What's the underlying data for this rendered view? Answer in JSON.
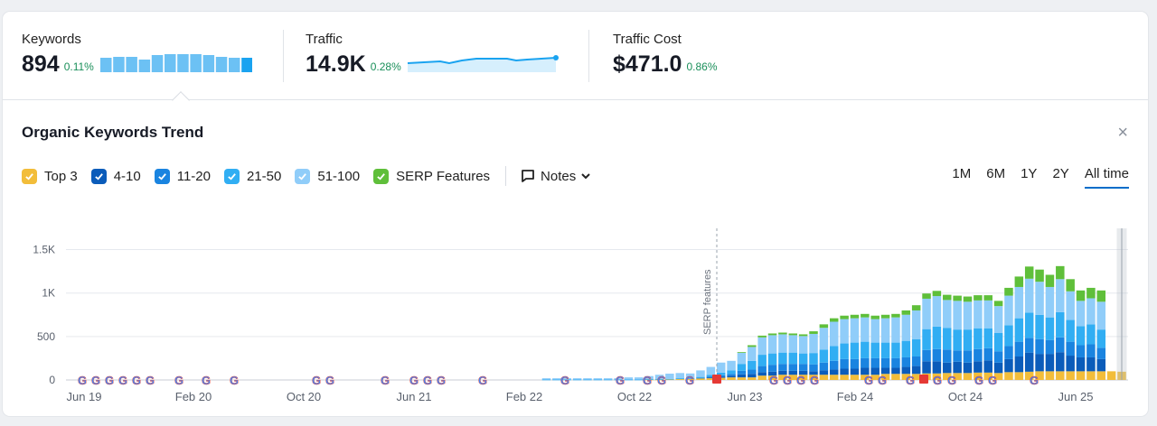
{
  "metrics": {
    "keywords": {
      "label": "Keywords",
      "value": "894",
      "delta": "0.11%"
    },
    "traffic": {
      "label": "Traffic",
      "value": "14.9K",
      "delta": "0.28%"
    },
    "cost": {
      "label": "Traffic Cost",
      "value": "$471.0",
      "delta": "0.86%"
    }
  },
  "trend": {
    "title": "Organic Keywords Trend",
    "close_icon": "×",
    "legend": [
      {
        "name": "top3",
        "label": "Top 3",
        "color": "#f2bd3a"
      },
      {
        "name": "4-10",
        "label": "4-10",
        "color": "#0b5cba"
      },
      {
        "name": "11-20",
        "label": "11-20",
        "color": "#1a84e0"
      },
      {
        "name": "21-50",
        "label": "21-50",
        "color": "#31aef3"
      },
      {
        "name": "51-100",
        "label": "51-100",
        "color": "#90cdf9"
      },
      {
        "name": "serp",
        "label": "SERP Features",
        "color": "#5fbf3a"
      }
    ],
    "notes_label": "Notes",
    "periods": [
      "1M",
      "6M",
      "1Y",
      "2Y",
      "All time"
    ],
    "active_period": "All time"
  },
  "chart_data": {
    "type": "bar",
    "stacked": true,
    "y_ticks": [
      "1.5K",
      "1K",
      "500",
      "0"
    ],
    "ylim": [
      0,
      1700
    ],
    "x_ticks": [
      "Jun 19",
      "Feb 20",
      "Oct 20",
      "Jun 21",
      "Feb 22",
      "Oct 22",
      "Jun 23",
      "Feb 24",
      "Oct 24",
      "Jun 25"
    ],
    "annotation": "SERP features",
    "series": [
      {
        "name": "Top 3",
        "values": [
          0,
          0,
          0,
          0,
          0,
          0,
          0,
          0,
          0,
          0,
          0,
          0,
          0,
          0,
          0,
          0,
          0,
          0,
          0,
          0,
          0,
          0,
          0,
          0,
          0,
          0,
          0,
          0,
          0,
          0,
          0,
          0,
          0,
          0,
          0,
          0,
          0,
          0,
          0,
          0,
          0,
          0,
          0,
          0,
          0,
          0,
          0,
          0,
          0,
          0,
          0,
          0,
          0,
          0,
          0,
          5,
          5,
          8,
          10,
          10,
          20,
          20,
          25,
          30,
          30,
          30,
          50,
          50,
          60,
          60,
          60,
          60,
          60,
          60,
          60,
          60,
          60,
          60,
          70,
          70,
          70,
          70,
          75,
          75,
          80,
          80,
          80,
          85,
          85,
          80,
          90,
          90,
          95,
          100,
          100,
          100,
          100,
          100,
          100,
          100,
          100,
          95
        ]
      },
      {
        "name": "4-10",
        "values": [
          0,
          0,
          0,
          0,
          0,
          0,
          0,
          0,
          0,
          0,
          0,
          0,
          0,
          0,
          0,
          0,
          0,
          0,
          0,
          0,
          0,
          0,
          0,
          0,
          0,
          0,
          0,
          0,
          0,
          0,
          0,
          0,
          0,
          0,
          0,
          0,
          0,
          0,
          0,
          0,
          0,
          0,
          0,
          0,
          0,
          0,
          0,
          0,
          0,
          0,
          0,
          0,
          0,
          0,
          0,
          0,
          0,
          0,
          0,
          0,
          0,
          10,
          15,
          20,
          35,
          40,
          40,
          45,
          45,
          45,
          45,
          40,
          50,
          60,
          70,
          70,
          80,
          80,
          70,
          70,
          80,
          90,
          140,
          140,
          120,
          130,
          120,
          130,
          140,
          120,
          150,
          180,
          220,
          200,
          200,
          220,
          180,
          160,
          160,
          140
        ]
      },
      {
        "name": "11-20",
        "values": [
          0,
          0,
          0,
          0,
          0,
          0,
          0,
          0,
          0,
          0,
          0,
          0,
          0,
          0,
          0,
          0,
          0,
          0,
          0,
          0,
          0,
          0,
          0,
          0,
          0,
          0,
          0,
          0,
          0,
          0,
          0,
          0,
          0,
          0,
          0,
          0,
          0,
          0,
          0,
          0,
          0,
          0,
          0,
          0,
          0,
          0,
          0,
          0,
          0,
          0,
          0,
          0,
          0,
          0,
          0,
          0,
          0,
          0,
          0,
          0,
          5,
          10,
          15,
          20,
          40,
          50,
          70,
          80,
          80,
          80,
          80,
          80,
          90,
          100,
          110,
          110,
          110,
          110,
          110,
          110,
          110,
          110,
          130,
          140,
          150,
          130,
          140,
          140,
          140,
          130,
          150,
          170,
          170,
          170,
          160,
          170,
          160,
          140,
          150,
          130
        ]
      },
      {
        "name": "21-50",
        "values": [
          0,
          0,
          0,
          0,
          0,
          0,
          0,
          0,
          0,
          0,
          0,
          0,
          0,
          0,
          0,
          0,
          0,
          0,
          0,
          0,
          0,
          0,
          0,
          0,
          0,
          0,
          0,
          0,
          0,
          0,
          0,
          0,
          0,
          0,
          0,
          0,
          0,
          0,
          0,
          0,
          0,
          0,
          0,
          0,
          0,
          5,
          5,
          5,
          5,
          5,
          5,
          5,
          5,
          5,
          5,
          5,
          5,
          5,
          10,
          10,
          10,
          20,
          30,
          40,
          80,
          100,
          130,
          130,
          130,
          130,
          120,
          130,
          150,
          170,
          180,
          190,
          190,
          180,
          180,
          180,
          190,
          200,
          240,
          260,
          250,
          240,
          240,
          240,
          230,
          210,
          240,
          270,
          290,
          280,
          260,
          290,
          250,
          220,
          230,
          210
        ]
      },
      {
        "name": "51-100",
        "values": [
          0,
          0,
          0,
          0,
          0,
          0,
          0,
          0,
          0,
          0,
          0,
          0,
          0,
          0,
          0,
          0,
          0,
          0,
          0,
          0,
          0,
          0,
          0,
          0,
          0,
          0,
          0,
          0,
          0,
          0,
          0,
          0,
          0,
          0,
          0,
          0,
          0,
          0,
          0,
          0,
          0,
          0,
          0,
          0,
          0,
          15,
          15,
          15,
          15,
          15,
          15,
          15,
          15,
          25,
          25,
          35,
          50,
          60,
          60,
          55,
          75,
          90,
          115,
          110,
          130,
          160,
          200,
          210,
          210,
          200,
          200,
          220,
          250,
          280,
          280,
          280,
          280,
          270,
          280,
          290,
          300,
          330,
          350,
          350,
          320,
          330,
          320,
          320,
          320,
          310,
          340,
          360,
          390,
          380,
          350,
          380,
          330,
          290,
          300,
          320
        ]
      },
      {
        "name": "SERP Features",
        "values": [
          0,
          0,
          0,
          0,
          0,
          0,
          0,
          0,
          0,
          0,
          0,
          0,
          0,
          0,
          0,
          0,
          0,
          0,
          0,
          0,
          0,
          0,
          0,
          0,
          0,
          0,
          0,
          0,
          0,
          0,
          0,
          0,
          0,
          0,
          0,
          0,
          0,
          0,
          0,
          0,
          0,
          0,
          0,
          0,
          0,
          0,
          0,
          0,
          0,
          0,
          0,
          0,
          0,
          0,
          0,
          0,
          0,
          0,
          0,
          0,
          0,
          0,
          0,
          0,
          5,
          20,
          20,
          20,
          20,
          20,
          20,
          30,
          40,
          40,
          40,
          40,
          40,
          40,
          40,
          40,
          50,
          60,
          60,
          60,
          60,
          60,
          60,
          60,
          60,
          60,
          90,
          120,
          140,
          140,
          140,
          150,
          140,
          120,
          120,
          130
        ]
      }
    ]
  },
  "colors": {
    "accent": "#006dca",
    "delta": "#1a8f5a",
    "spark_bar": "#6cc1f4",
    "spark_bar_last": "#1aa3f0",
    "note_flag": "#e53935"
  },
  "icons": {
    "google_marker": "google-g-icon",
    "note_marker": "note-flag-icon",
    "notes": "comment-icon",
    "close": "close-icon"
  }
}
